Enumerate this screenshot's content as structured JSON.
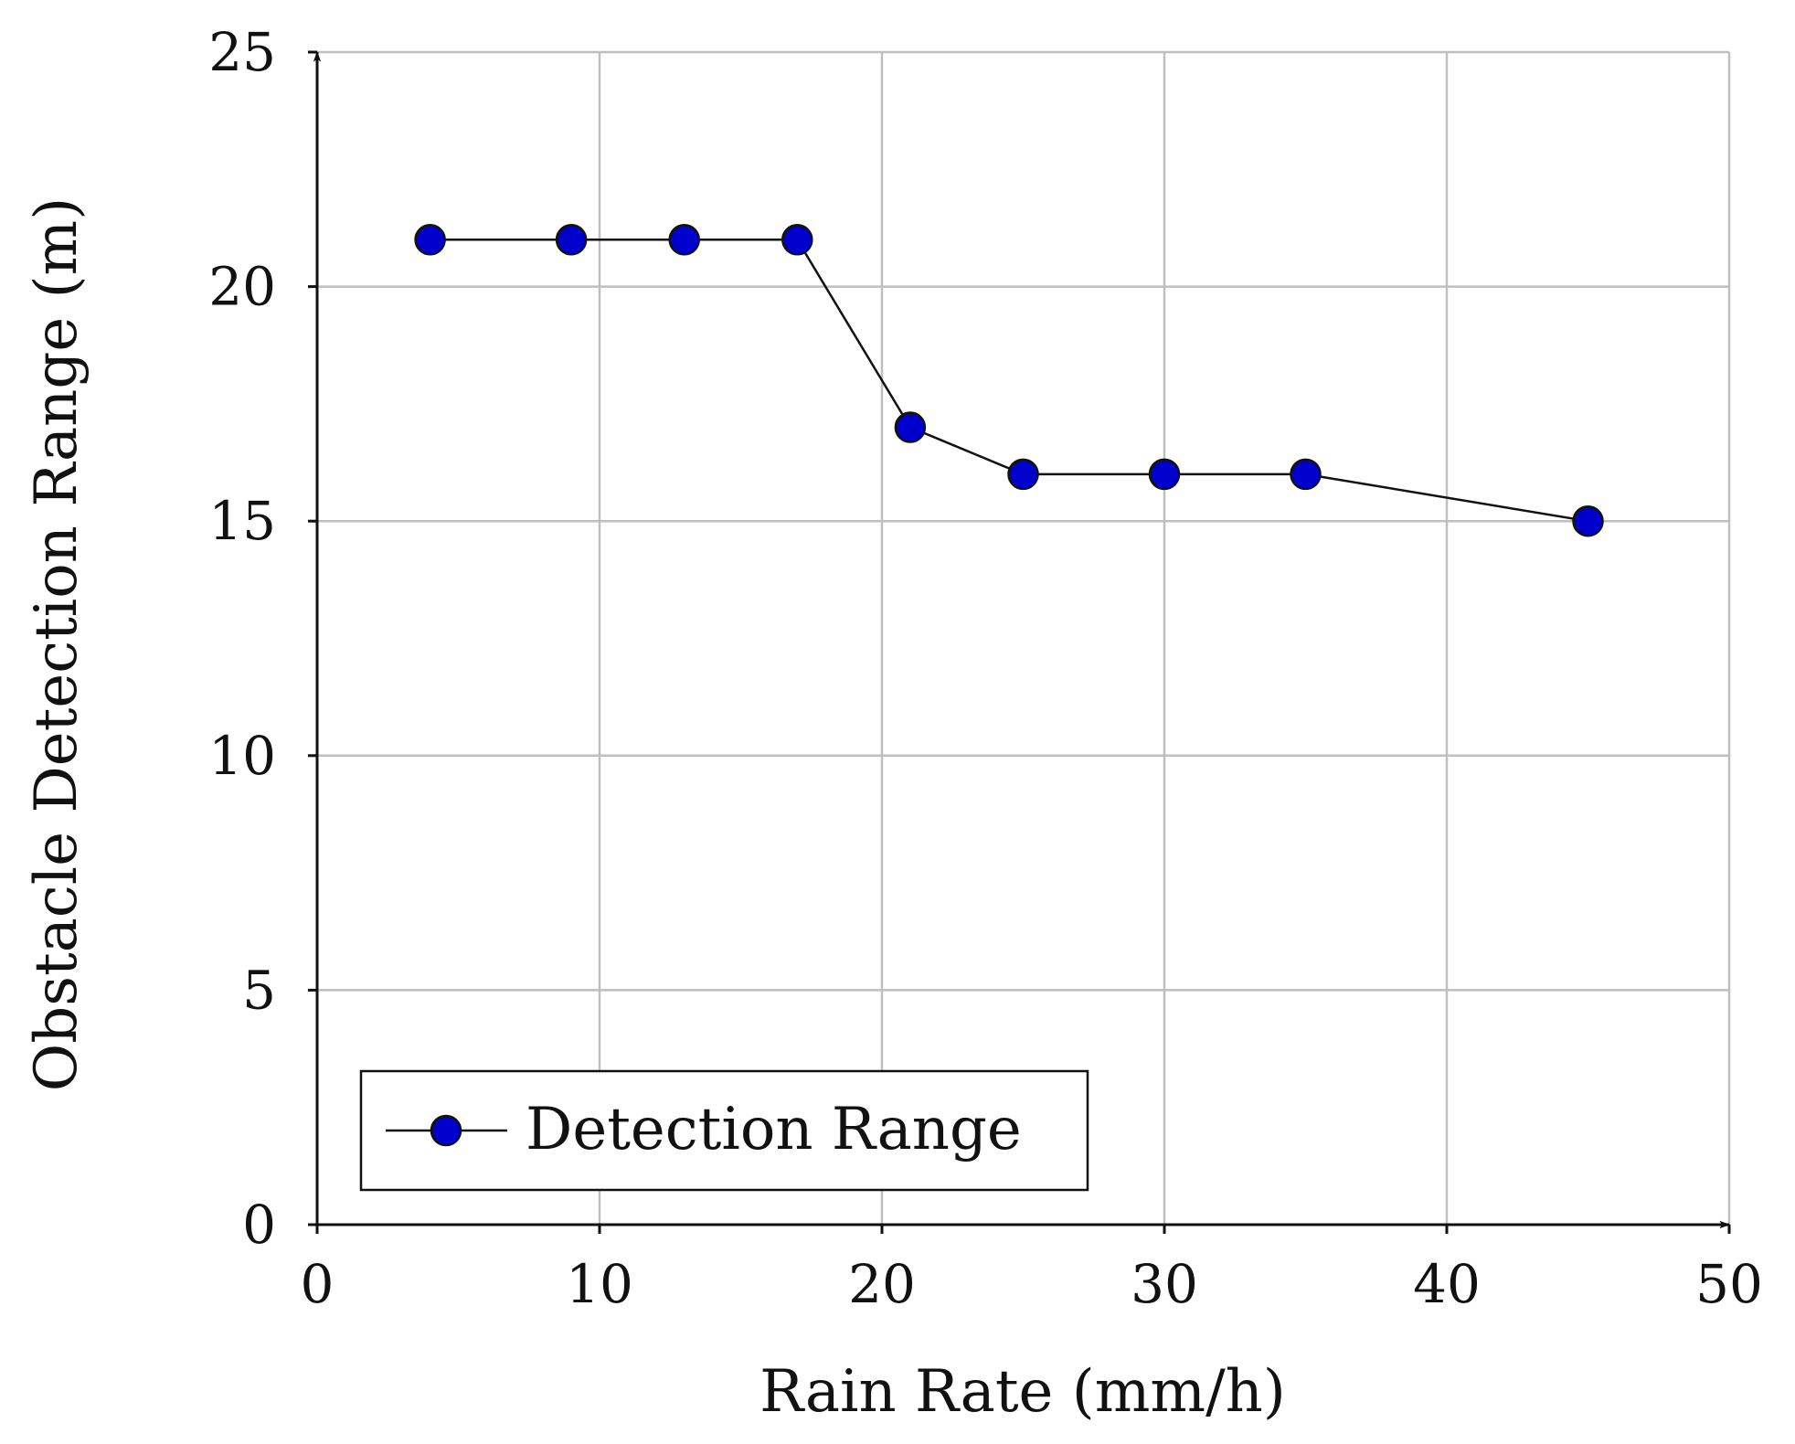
{
  "chart_data": {
    "type": "line",
    "title": "",
    "xlabel": "Rain Rate (mm/h)",
    "ylabel": "Obstacle Detection Range (m)",
    "xlim": [
      0,
      50
    ],
    "ylim": [
      0,
      25
    ],
    "xticks": [
      0,
      10,
      20,
      30,
      40,
      50
    ],
    "yticks": [
      0,
      5,
      10,
      15,
      20,
      25
    ],
    "grid": true,
    "legend_position": "bottom-left",
    "series": [
      {
        "name": "Detection Range",
        "color": "#0000cc",
        "marker": "circle",
        "x": [
          4,
          9,
          13,
          17,
          21,
          25,
          30,
          35,
          45
        ],
        "y": [
          21,
          21,
          21,
          21,
          17,
          16,
          16,
          16,
          15
        ]
      }
    ]
  }
}
